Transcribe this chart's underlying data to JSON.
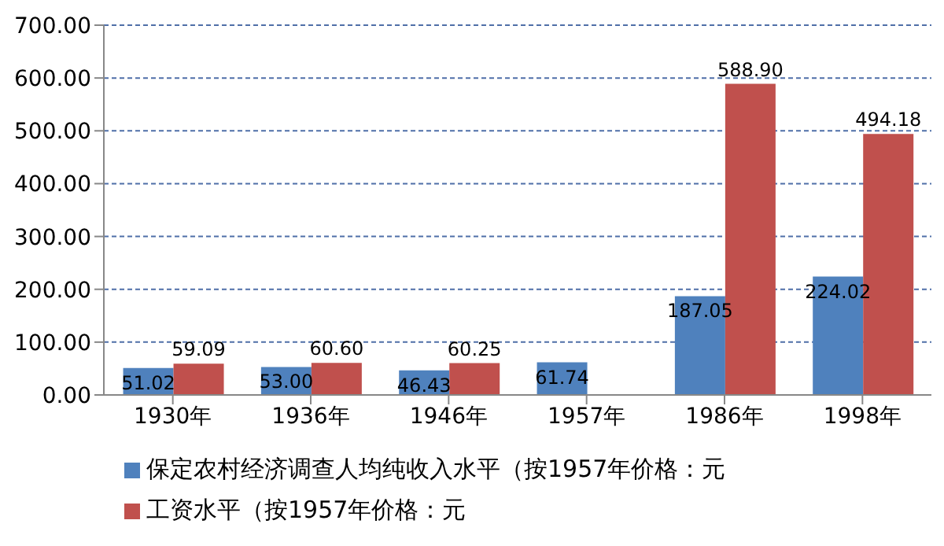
{
  "chart_data": {
    "type": "bar",
    "categories": [
      "1930年",
      "1936年",
      "1946年",
      "1957年",
      "1986年",
      "1998年"
    ],
    "series": [
      {
        "name": "保定农村经济调查人均纯收入水平（按1957年价格：元",
        "color": "#4f81bd",
        "values": [
          51.02,
          53.0,
          46.43,
          61.74,
          187.05,
          224.02
        ],
        "value_labels": [
          "51.02",
          "53.00",
          "46.43",
          "61.74",
          "187.05",
          "224.02"
        ]
      },
      {
        "name": "工资水平（按1957年价格：元",
        "color": "#c0504d",
        "values": [
          59.09,
          60.6,
          60.25,
          null,
          588.9,
          494.18
        ],
        "value_labels": [
          "59.09",
          "60.60",
          "60.25",
          null,
          "588.90",
          "494.18"
        ]
      }
    ],
    "ylim": [
      0,
      700
    ],
    "yticks": [
      {
        "value": 0,
        "label": "0.00"
      },
      {
        "value": 100,
        "label": "100.00"
      },
      {
        "value": 200,
        "label": "200.00"
      },
      {
        "value": 300,
        "label": "300.00"
      },
      {
        "value": 400,
        "label": "400.00"
      },
      {
        "value": 500,
        "label": "500.00"
      },
      {
        "value": 600,
        "label": "600.00"
      },
      {
        "value": 700,
        "label": "700.00"
      }
    ],
    "grid": "y",
    "legend": "bottom"
  }
}
